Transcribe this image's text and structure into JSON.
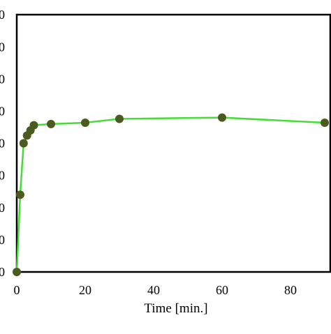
{
  "chart_data": {
    "type": "line",
    "title": "",
    "xlabel": "Time [min.]",
    "ylabel": "",
    "xlim": [
      0,
      90
    ],
    "ylim": [
      0,
      100
    ],
    "x_ticks": [
      0,
      20,
      40,
      60,
      80
    ],
    "x_tick_labels": [
      "0",
      "20",
      "40",
      "60",
      "80"
    ],
    "y_tick_labels": [
      "0",
      "0",
      "0",
      "0",
      "0",
      "0",
      "0",
      "0",
      "0"
    ],
    "grid": false,
    "legend": "none",
    "series": [
      {
        "color": "#44dd33",
        "marker_color": "#4b5a1e",
        "x": [
          0,
          1,
          2,
          3,
          4,
          5,
          10,
          20,
          30,
          60,
          90
        ],
        "y": [
          0,
          30,
          50,
          53,
          55,
          57,
          57.5,
          58,
          59.5,
          60,
          58
        ]
      }
    ]
  }
}
